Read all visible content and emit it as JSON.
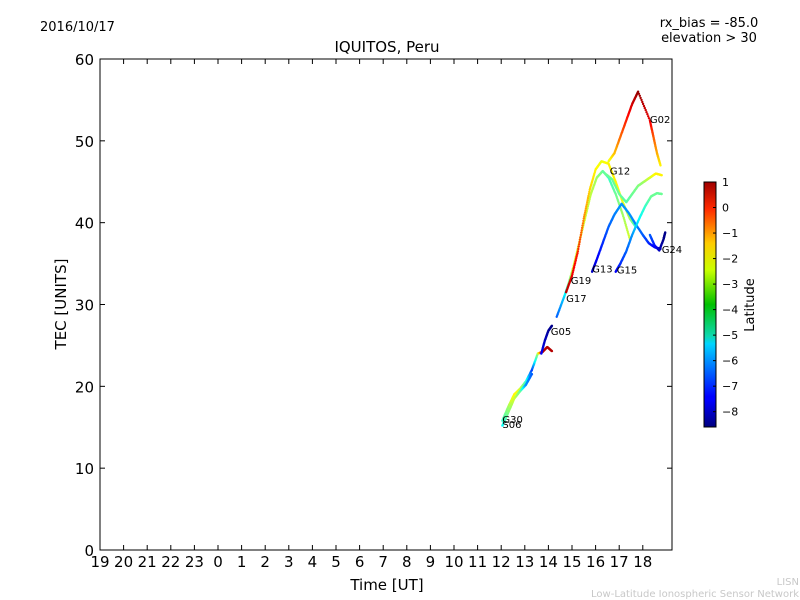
{
  "header": {
    "date": "2016/10/17",
    "rx_bias": "rx_bias = -85.0",
    "elevation": "elevation > 30"
  },
  "footer": {
    "watermark_short": "LISN",
    "watermark_long": "Low-Latitude Ionospheric Sensor Network"
  },
  "chart_data": {
    "type": "scatter",
    "title": "IQUITOS, Peru",
    "xlabel": "Time [UT]",
    "ylabel": "TEC [UNITS]",
    "ylim": [
      0,
      60
    ],
    "yticks": [
      0,
      10,
      20,
      30,
      40,
      50,
      60
    ],
    "xticks": [
      "19",
      "20",
      "21",
      "22",
      "23",
      "0",
      "1",
      "2",
      "3",
      "4",
      "5",
      "6",
      "7",
      "8",
      "9",
      "10",
      "11",
      "12",
      "13",
      "14",
      "15",
      "16",
      "17",
      "18"
    ],
    "colorbar": {
      "label": "Latitude",
      "range": [
        -8.6,
        1
      ],
      "ticks": [
        1,
        0,
        -1,
        -2,
        -3,
        -4,
        -5,
        -6,
        -7,
        -8
      ]
    },
    "satellites": [
      "G30",
      "G06",
      "G05",
      "G17",
      "G19",
      "G13",
      "G15",
      "G12",
      "G02",
      "G24"
    ],
    "series": [
      {
        "name": "G30",
        "points": [
          [
            12.05,
            15.8,
            -4.5
          ],
          [
            12.3,
            17.5,
            -3.5
          ],
          [
            12.55,
            19.0,
            -2.5
          ],
          [
            12.8,
            19.7,
            -3.0
          ],
          [
            13.05,
            20.6,
            -4.5
          ],
          [
            13.3,
            22.0,
            -6.8
          ],
          [
            13.55,
            24.0,
            -3.5
          ],
          [
            13.75,
            24.2,
            0.5
          ],
          [
            13.95,
            24.8,
            0.5
          ],
          [
            14.15,
            24.3,
            0.5
          ]
        ]
      },
      {
        "name": "G06",
        "points": [
          [
            12.05,
            15.2,
            -5.0
          ],
          [
            12.3,
            16.8,
            -3.8
          ],
          [
            12.55,
            18.5,
            -3.0
          ],
          [
            12.8,
            19.4,
            -4.0
          ],
          [
            13.05,
            20.2,
            -6.0
          ],
          [
            13.3,
            21.5,
            -6.5
          ]
        ]
      },
      {
        "name": "G05",
        "points": [
          [
            13.7,
            24.0,
            -7.5
          ],
          [
            13.85,
            25.6,
            -8.0
          ],
          [
            14.0,
            26.8,
            -8.3
          ],
          [
            14.15,
            27.4,
            -8.5
          ]
        ]
      },
      {
        "name": "G17",
        "points": [
          [
            14.35,
            28.5,
            -6.5
          ],
          [
            14.65,
            30.8,
            -5.5
          ],
          [
            14.85,
            32.5,
            -4.0
          ],
          [
            15.05,
            34.5,
            -3.0
          ],
          [
            15.3,
            37.5,
            -3.0
          ],
          [
            15.55,
            40.5,
            -3.0
          ],
          [
            15.8,
            43.5,
            -3.2
          ],
          [
            16.05,
            45.5,
            -3.5
          ],
          [
            16.3,
            46.3,
            -4.0
          ],
          [
            16.55,
            45.5,
            -4.5
          ],
          [
            16.85,
            43.5,
            -4.0
          ],
          [
            17.15,
            41.0,
            -3.5
          ],
          [
            17.45,
            38.0,
            -3.0
          ]
        ]
      },
      {
        "name": "G19",
        "points": [
          [
            14.75,
            31.5,
            0.5
          ],
          [
            15.0,
            33.5,
            0.0
          ],
          [
            15.25,
            36.5,
            -0.5
          ],
          [
            15.5,
            40.5,
            -1.5
          ],
          [
            15.75,
            44.0,
            -2.2
          ],
          [
            16.0,
            46.5,
            -2.5
          ],
          [
            16.25,
            47.5,
            -2.8
          ],
          [
            16.55,
            47.2,
            -2.5
          ],
          [
            16.85,
            45.0,
            -2.5
          ],
          [
            17.15,
            42.5,
            -2.8
          ],
          [
            17.45,
            40.5,
            -3.5
          ],
          [
            17.7,
            39.5,
            -4.5
          ]
        ]
      },
      {
        "name": "G13",
        "points": [
          [
            15.85,
            34.0,
            -8.0
          ],
          [
            16.05,
            35.5,
            -7.5
          ],
          [
            16.3,
            37.5,
            -7.0
          ],
          [
            16.55,
            39.5,
            -6.5
          ],
          [
            16.8,
            41.0,
            -6.2
          ],
          [
            17.1,
            42.3,
            -6.0
          ],
          [
            17.4,
            41.2,
            -6.0
          ],
          [
            17.7,
            39.8,
            -6.2
          ],
          [
            18.0,
            38.5,
            -6.5
          ],
          [
            18.25,
            37.5,
            -7.0
          ],
          [
            18.5,
            37.0,
            -7.5
          ],
          [
            18.75,
            36.8,
            -8.0
          ]
        ]
      },
      {
        "name": "G15",
        "points": [
          [
            16.85,
            34.0,
            -7.5
          ],
          [
            17.05,
            35.0,
            -7.0
          ],
          [
            17.3,
            36.5,
            -6.5
          ],
          [
            17.55,
            38.5,
            -6.0
          ],
          [
            17.85,
            40.5,
            -5.0
          ],
          [
            18.1,
            42.0,
            -4.5
          ],
          [
            18.35,
            43.2,
            -4.0
          ],
          [
            18.6,
            43.6,
            -4.0
          ],
          [
            18.8,
            43.5,
            -4.0
          ]
        ]
      },
      {
        "name": "G12",
        "points": [
          [
            16.4,
            46.0,
            -4.0
          ],
          [
            16.7,
            45.3,
            -4.0
          ],
          [
            17.0,
            43.5,
            -4.0
          ],
          [
            17.3,
            42.5,
            -4.2
          ],
          [
            17.55,
            43.5,
            -4.0
          ],
          [
            17.8,
            44.5,
            -3.8
          ],
          [
            18.05,
            45.0,
            -3.5
          ],
          [
            18.3,
            45.5,
            -3.0
          ],
          [
            18.55,
            46.0,
            -2.5
          ],
          [
            18.8,
            45.8,
            -2.5
          ]
        ]
      },
      {
        "name": "G02",
        "points": [
          [
            16.55,
            47.5,
            -2.8
          ],
          [
            16.8,
            48.5,
            -2.0
          ],
          [
            17.05,
            50.5,
            -1.2
          ],
          [
            17.3,
            52.5,
            -0.5
          ],
          [
            17.55,
            54.5,
            0.2
          ],
          [
            17.8,
            56.0,
            0.8
          ],
          [
            18.3,
            52.5,
            0.0
          ],
          [
            18.45,
            50.5,
            -1.0
          ],
          [
            18.6,
            48.5,
            -1.8
          ],
          [
            18.75,
            47.0,
            -2.5
          ]
        ]
      },
      {
        "name": "G24",
        "points": [
          [
            18.3,
            38.5,
            -6.5
          ],
          [
            18.5,
            37.2,
            -7.2
          ],
          [
            18.7,
            36.6,
            -8.0
          ],
          [
            18.88,
            38.0,
            -8.5
          ],
          [
            18.95,
            38.8,
            -8.5
          ]
        ]
      }
    ],
    "labels": [
      {
        "text": "G30",
        "x": 12.05,
        "y": 15.5
      },
      {
        "text": "S06",
        "x": 12.05,
        "y": 14.9
      },
      {
        "text": "G05",
        "x": 14.1,
        "y": 26.3
      },
      {
        "text": "G17",
        "x": 14.75,
        "y": 30.3
      },
      {
        "text": "G19",
        "x": 14.95,
        "y": 32.5
      },
      {
        "text": "G13",
        "x": 15.85,
        "y": 33.9
      },
      {
        "text": "G15",
        "x": 16.9,
        "y": 33.8
      },
      {
        "text": "G12",
        "x": 16.6,
        "y": 45.9
      },
      {
        "text": "G02",
        "x": 18.3,
        "y": 52.2
      },
      {
        "text": "G24",
        "x": 18.8,
        "y": 36.3
      }
    ]
  }
}
